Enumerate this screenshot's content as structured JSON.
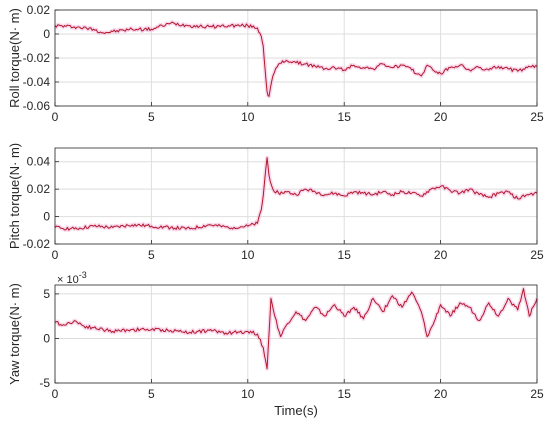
{
  "chart_data": [
    {
      "type": "line",
      "ylabel": "Roll torque(N· m)",
      "xlim": [
        0,
        25
      ],
      "ylim": [
        -0.06,
        0.02
      ],
      "xticks": [
        "0",
        "5",
        "10",
        "15",
        "20",
        "25"
      ],
      "yticks": [
        "0.02",
        "0",
        "-0.02",
        "-0.04",
        "-0.06"
      ],
      "grid": true,
      "line_color": "#b2182b",
      "halo_color": "#f4b6df",
      "series": [
        {
          "x": [
            0,
            1,
            2,
            2.5,
            3,
            4,
            5,
            6,
            7,
            8,
            9,
            10,
            10.5,
            10.7,
            10.8,
            10.9,
            11.0,
            11.1,
            11.3,
            11.6,
            12,
            12.5,
            13,
            13.5,
            14,
            14.5,
            15,
            15.5,
            16,
            16.5,
            17,
            17.5,
            18,
            18.5,
            19,
            19.3,
            19.6,
            20,
            20.5,
            21,
            21.5,
            22,
            22.5,
            23,
            23.5,
            24,
            24.5,
            25
          ],
          "y": [
            0.007,
            0.006,
            0.004,
            0.001,
            0.002,
            0.004,
            0.004,
            0.009,
            0.007,
            0.006,
            0.007,
            0.007,
            0.005,
            -0.002,
            -0.01,
            -0.03,
            -0.048,
            -0.052,
            -0.035,
            -0.025,
            -0.022,
            -0.024,
            -0.025,
            -0.027,
            -0.029,
            -0.028,
            -0.03,
            -0.026,
            -0.028,
            -0.029,
            -0.025,
            -0.028,
            -0.026,
            -0.03,
            -0.035,
            -0.026,
            -0.03,
            -0.033,
            -0.028,
            -0.026,
            -0.03,
            -0.028,
            -0.03,
            -0.027,
            -0.029,
            -0.031,
            -0.028,
            -0.027
          ]
        }
      ]
    },
    {
      "type": "line",
      "ylabel": "Pitch torque(N· m)",
      "xlim": [
        0,
        25
      ],
      "ylim": [
        -0.02,
        0.05
      ],
      "xticks": [
        "0",
        "5",
        "10",
        "15",
        "20",
        "25"
      ],
      "yticks": [
        "0.04",
        "0.02",
        "0",
        "-0.02"
      ],
      "grid": true,
      "line_color": "#b2182b",
      "halo_color": "#f4b6df",
      "series": [
        {
          "x": [
            0,
            1,
            2,
            3,
            4,
            5,
            6,
            7,
            8,
            9,
            10,
            10.5,
            10.7,
            10.8,
            10.9,
            11.0,
            11.1,
            11.3,
            11.6,
            12,
            12.5,
            13,
            13.5,
            14,
            14.5,
            15,
            15.5,
            16,
            16.5,
            17,
            17.5,
            18,
            18.5,
            19,
            19.5,
            20,
            20.5,
            21,
            21.5,
            22,
            22.5,
            23,
            23.5,
            24,
            24.5,
            25
          ],
          "y": [
            -0.008,
            -0.009,
            -0.007,
            -0.008,
            -0.006,
            -0.007,
            -0.008,
            -0.009,
            -0.006,
            -0.008,
            -0.007,
            -0.005,
            0.005,
            0.015,
            0.03,
            0.043,
            0.03,
            0.02,
            0.017,
            0.018,
            0.016,
            0.02,
            0.018,
            0.016,
            0.017,
            0.015,
            0.018,
            0.017,
            0.016,
            0.018,
            0.016,
            0.018,
            0.017,
            0.015,
            0.02,
            0.022,
            0.019,
            0.017,
            0.02,
            0.016,
            0.014,
            0.017,
            0.018,
            0.013,
            0.016,
            0.017
          ]
        }
      ]
    },
    {
      "type": "line",
      "ylabel": "Yaw torque(N· m)",
      "xlabel": "Time(s)",
      "y_exponent": "× 10^{-3}",
      "xlim": [
        0,
        25
      ],
      "ylim": [
        -5,
        6
      ],
      "xticks": [
        "0",
        "5",
        "10",
        "15",
        "20",
        "25"
      ],
      "yticks": [
        "5",
        "0",
        "-5"
      ],
      "grid": true,
      "line_color": "#b2182b",
      "halo_color": "#f4b6df",
      "series": [
        {
          "x": [
            0,
            0.5,
            1,
            1.5,
            2,
            3,
            4,
            5,
            6,
            7,
            8,
            9,
            10,
            10.5,
            10.8,
            11.0,
            11.1,
            11.2,
            11.4,
            11.7,
            12,
            12.5,
            13,
            13.5,
            14,
            14.5,
            15,
            15.5,
            16,
            16.5,
            17,
            17.5,
            18,
            18.5,
            19,
            19.3,
            19.6,
            20,
            20.5,
            21,
            21.5,
            22,
            22.5,
            23,
            23.5,
            24,
            24.3,
            24.6,
            25
          ],
          "y": [
            1.8,
            1.5,
            2.0,
            1.4,
            1.2,
            0.8,
            1.0,
            1.0,
            0.9,
            0.7,
            0.9,
            0.6,
            0.8,
            0.5,
            -1.0,
            -3.4,
            0.5,
            4.5,
            2.5,
            0.2,
            1.5,
            3.0,
            2.0,
            3.5,
            2.5,
            3.8,
            2.5,
            3.5,
            2.2,
            4.5,
            3.0,
            4.8,
            3.5,
            5.2,
            3.0,
            0.2,
            1.5,
            3.8,
            2.5,
            4.0,
            3.5,
            2.0,
            4.0,
            2.5,
            4.5,
            3.2,
            5.6,
            2.5,
            4.5
          ]
        }
      ]
    }
  ]
}
